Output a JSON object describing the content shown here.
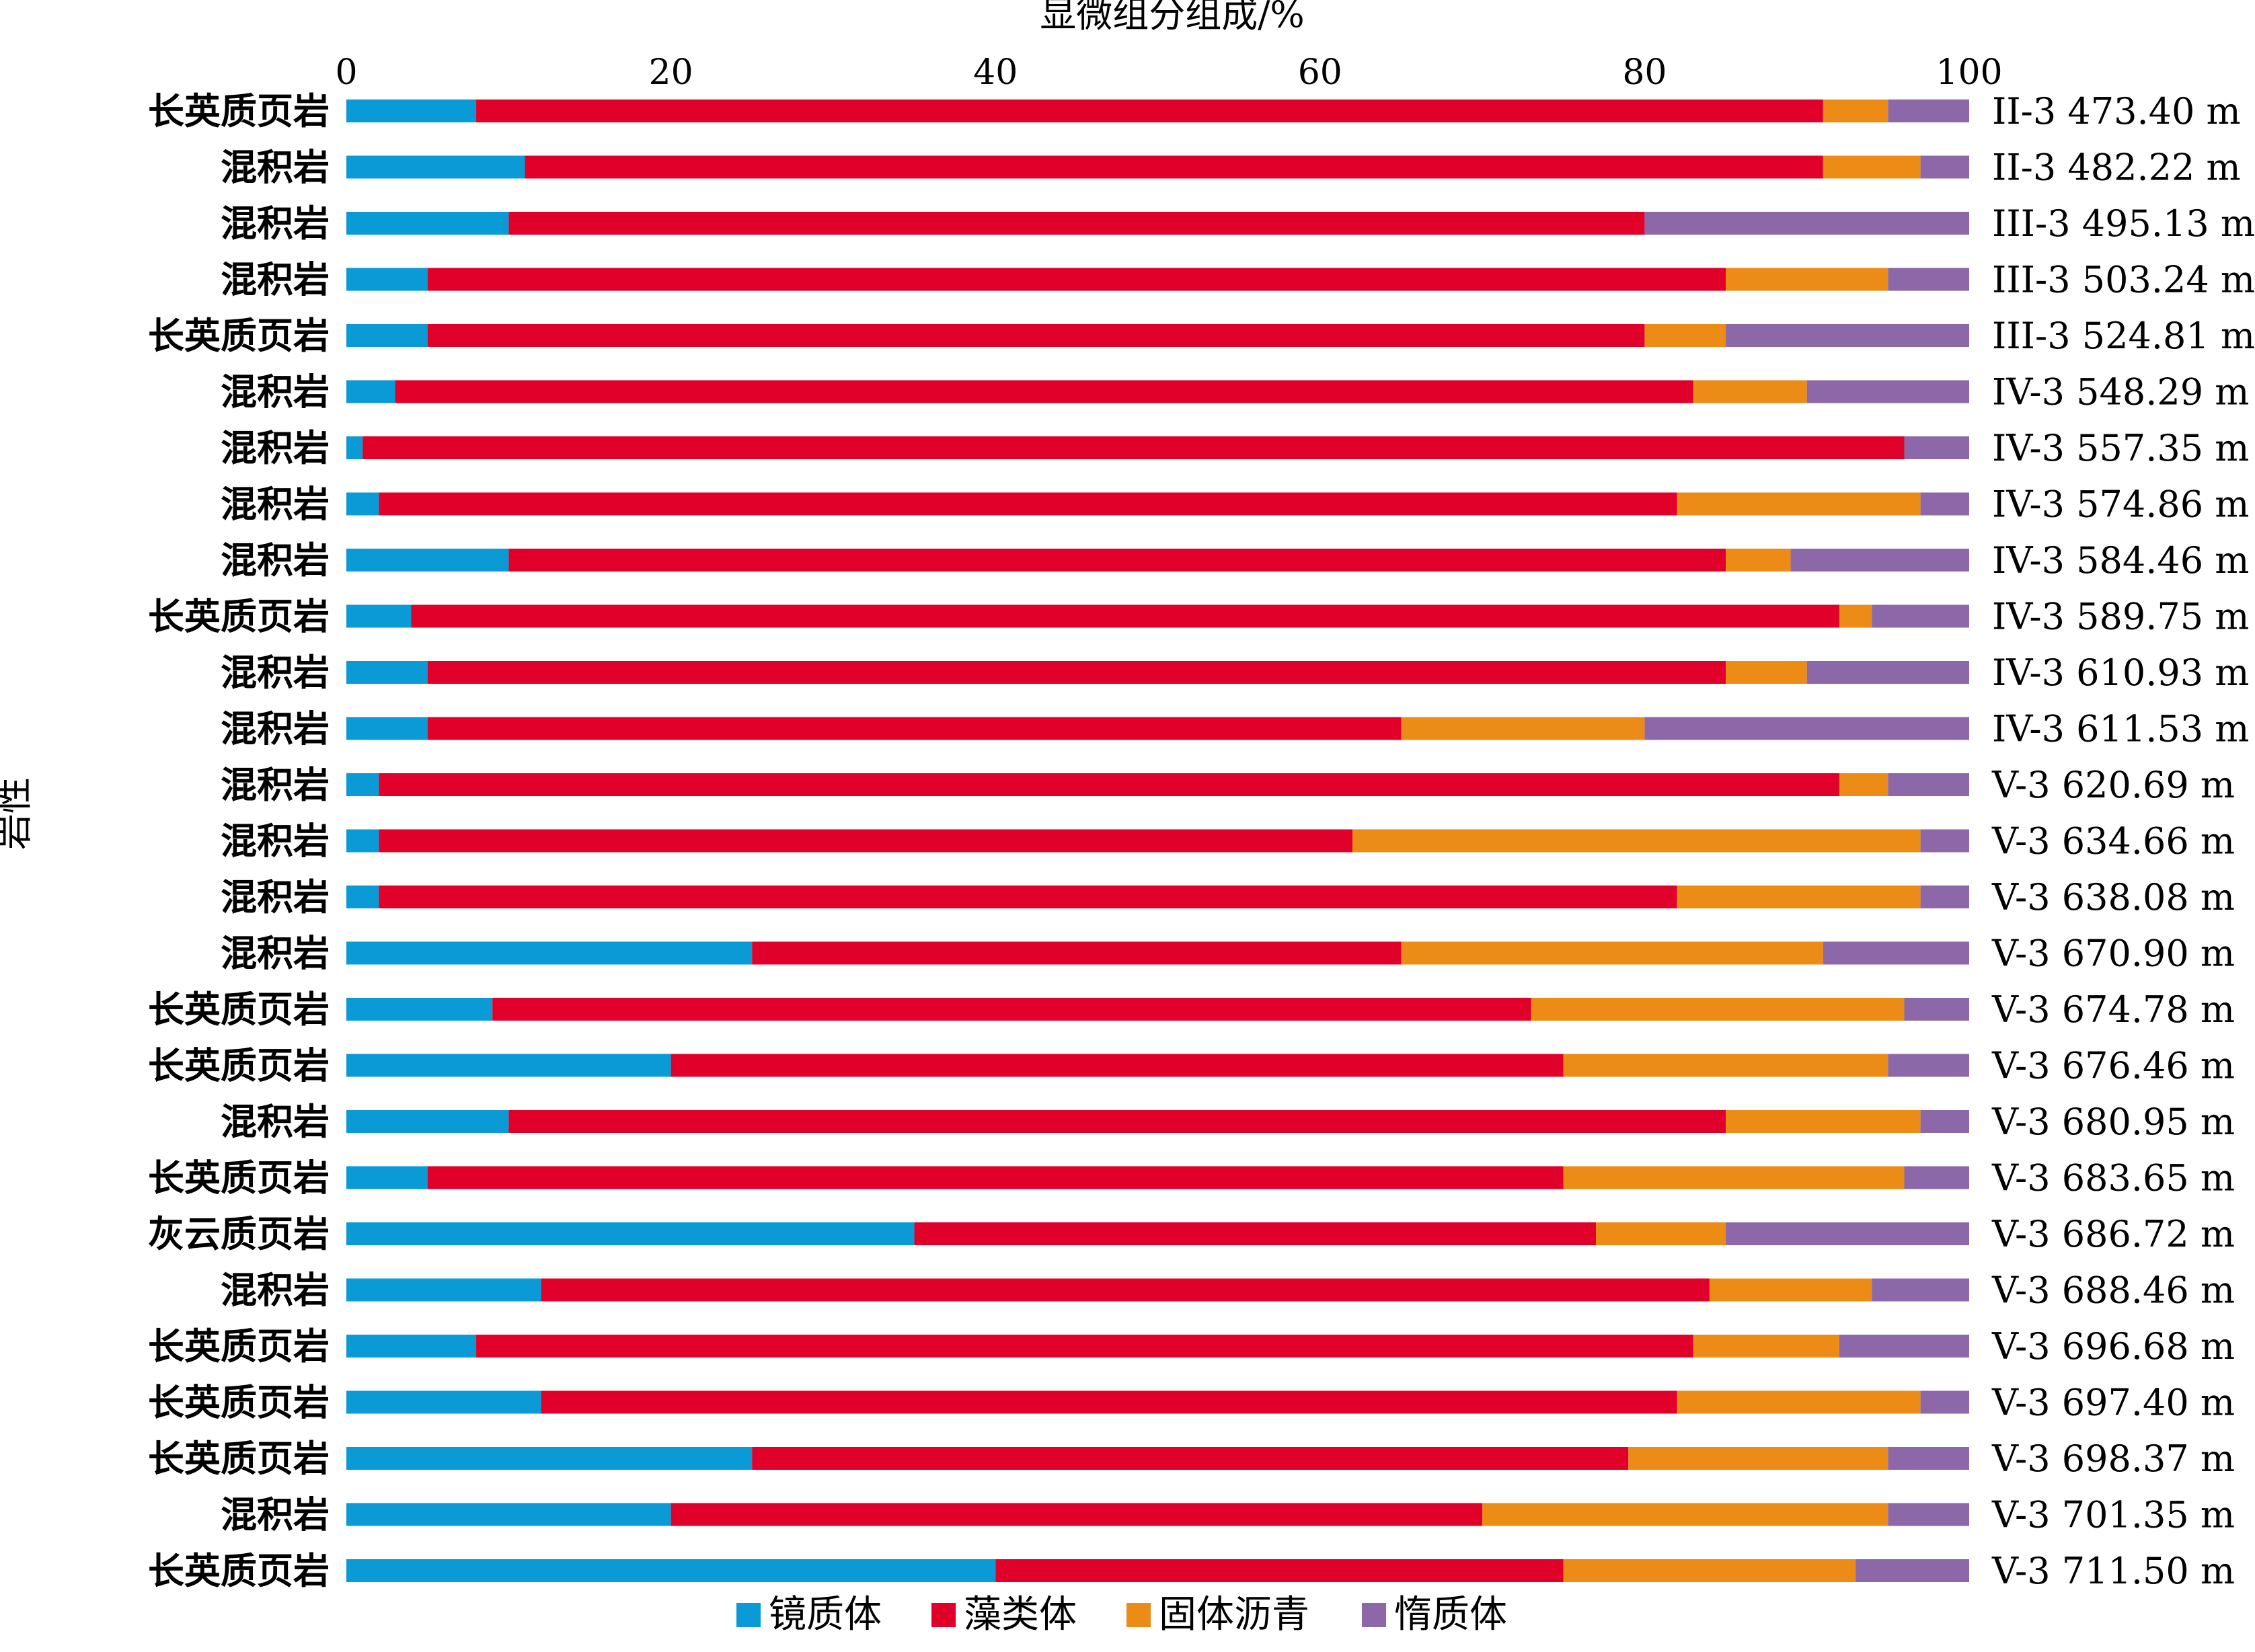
{
  "chart_data": {
    "type": "bar",
    "orientation": "horizontal",
    "stacked": true,
    "xlabel": "显微组分组成/%",
    "ylabel": "岩性",
    "xlim": [
      0,
      100
    ],
    "xticks": [
      "0",
      "20",
      "40",
      "60",
      "80",
      "100"
    ],
    "grid": false,
    "legend_position": "bottom",
    "categories": [
      "长英质页岩",
      "混积岩",
      "混积岩",
      "混积岩",
      "长英质页岩",
      "混积岩",
      "混积岩",
      "混积岩",
      "混积岩",
      "长英质页岩",
      "混积岩",
      "混积岩",
      "混积岩",
      "混积岩",
      "混积岩",
      "混积岩",
      "长英质页岩",
      "长英质页岩",
      "混积岩",
      "长英质页岩",
      "灰云质页岩",
      "混积岩",
      "长英质页岩",
      "长英质页岩",
      "长英质页岩",
      "混积岩",
      "长英质页岩"
    ],
    "sample_labels": [
      "II-3 473.40 m",
      "II-3 482.22 m",
      "III-3 495.13 m",
      "III-3 503.24 m",
      "III-3 524.81 m",
      "IV-3 548.29 m",
      "IV-3 557.35 m",
      "IV-3 574.86 m",
      "IV-3 584.46 m",
      "IV-3 589.75 m",
      "IV-3 610.93 m",
      "IV-3 611.53 m",
      "V-3 620.69 m",
      "V-3 634.66 m",
      "V-3 638.08 m",
      "V-3 670.90 m",
      "V-3 674.78 m",
      "V-3 676.46 m",
      "V-3 680.95 m",
      "V-3 683.65 m",
      "V-3 686.72 m",
      "V-3 688.46 m",
      "V-3 696.68 m",
      "V-3 697.40 m",
      "V-3 698.37 m",
      "V-3 701.35 m",
      "V-3 711.50 m"
    ],
    "series": [
      {
        "name": "镜质体",
        "color": "#0a9bd6",
        "values": [
          8,
          11,
          10,
          5,
          5,
          3,
          1,
          2,
          10,
          4,
          5,
          5,
          2,
          2,
          2,
          25,
          9,
          20,
          10,
          5,
          35,
          12,
          8,
          12,
          25,
          20,
          40
        ]
      },
      {
        "name": "藻类体",
        "color": "#e0002a",
        "values": [
          83,
          80,
          70,
          80,
          75,
          80,
          95,
          80,
          75,
          88,
          80,
          60,
          90,
          60,
          80,
          40,
          64,
          55,
          75,
          70,
          42,
          72,
          75,
          70,
          54,
          50,
          35
        ]
      },
      {
        "name": "固体沥青",
        "color": "#ec8c17",
        "values": [
          4,
          6,
          0,
          10,
          5,
          7,
          0,
          15,
          4,
          2,
          5,
          15,
          3,
          35,
          15,
          26,
          23,
          20,
          12,
          21,
          8,
          10,
          9,
          15,
          16,
          25,
          18
        ]
      },
      {
        "name": "惰质体",
        "color": "#8c68a8",
        "values": [
          5,
          3,
          20,
          5,
          15,
          10,
          4,
          3,
          11,
          6,
          10,
          20,
          5,
          3,
          3,
          9,
          4,
          5,
          3,
          4,
          15,
          6,
          8,
          3,
          5,
          5,
          7
        ]
      }
    ]
  }
}
